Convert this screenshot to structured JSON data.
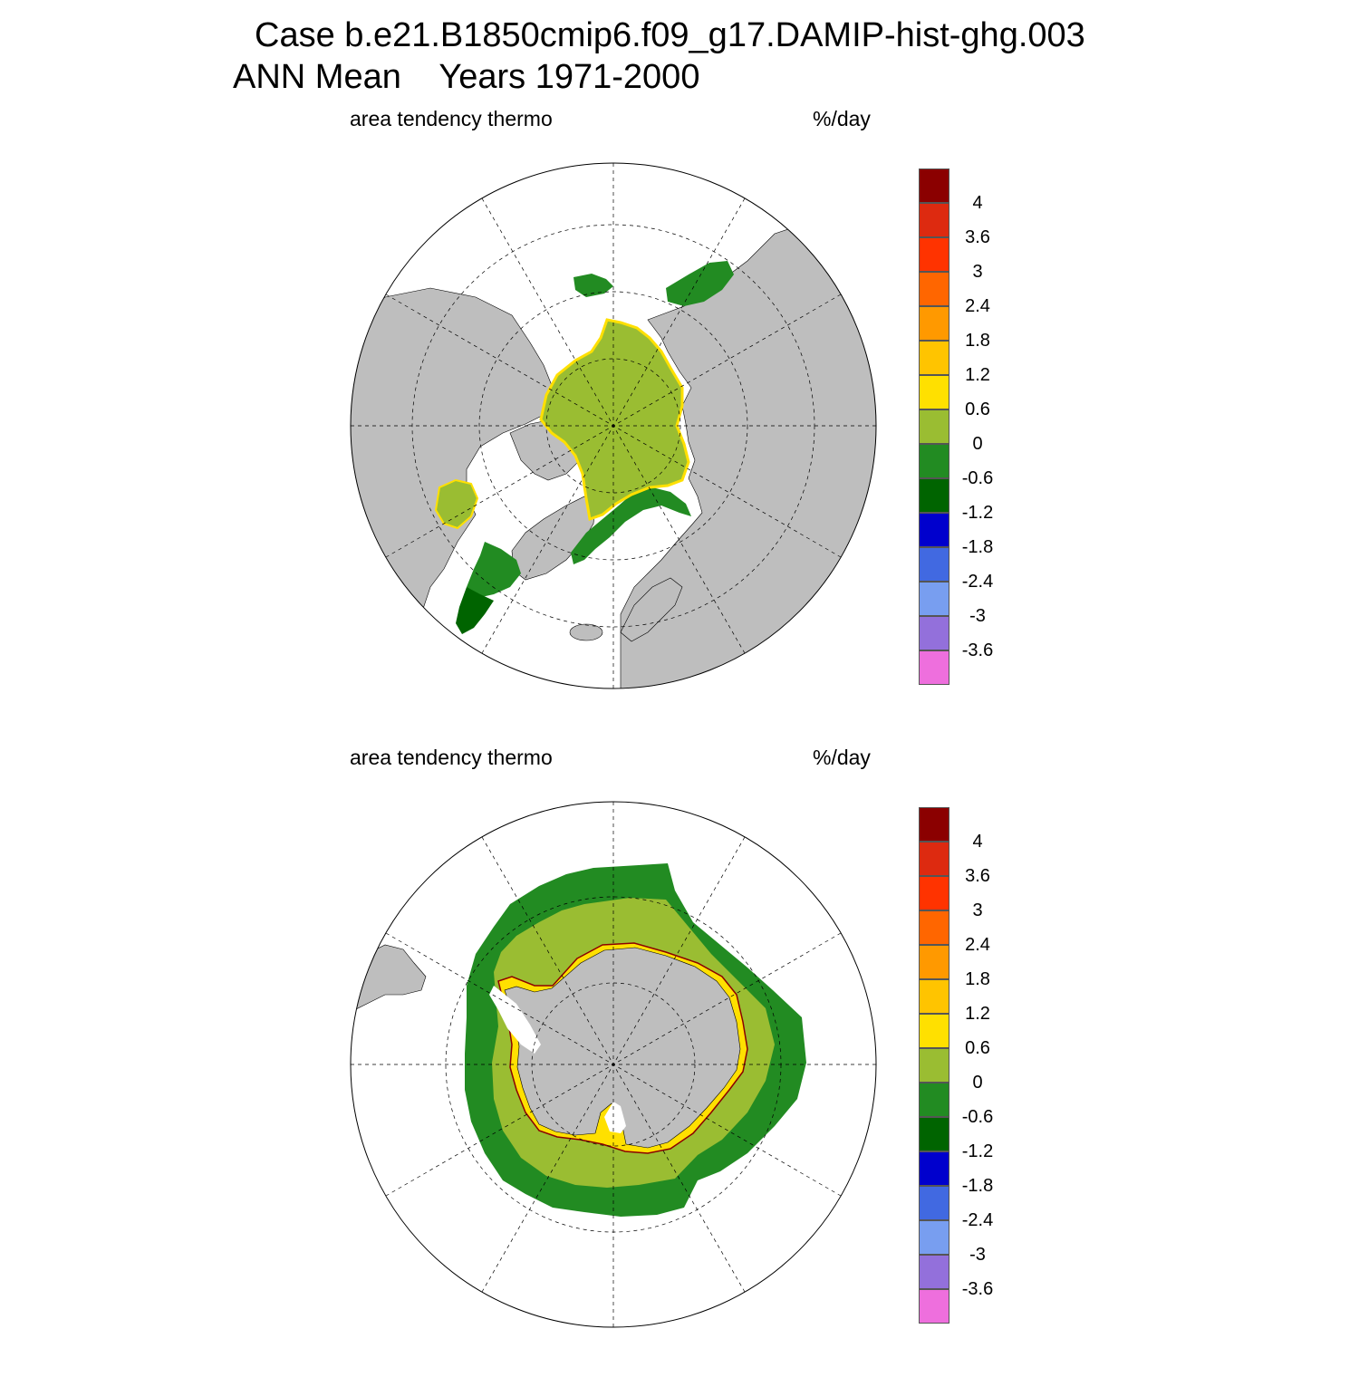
{
  "title": {
    "line1": "Case b.e21.B1850cmip6.f09_g17.DAMIP-hist-ghg.003",
    "line2": "ANN Mean    Years 1971-2000"
  },
  "panels": [
    {
      "id": "north",
      "hemisphere": "northern",
      "left_label": "area tendency thermo",
      "right_label": "%/day"
    },
    {
      "id": "south",
      "hemisphere": "southern",
      "left_label": "area tendency thermo",
      "right_label": "%/day"
    }
  ],
  "colorbar": {
    "tick_labels": [
      "4",
      "3.6",
      "3",
      "2.4",
      "1.8",
      "1.2",
      "0.6",
      "0",
      "-0.6",
      "-1.2",
      "-1.8",
      "-2.4",
      "-3",
      "-3.6"
    ],
    "colors_top_to_bottom": [
      "#8b0000",
      "#dd2a10",
      "#ff3300",
      "#ff6600",
      "#ff9900",
      "#ffc400",
      "#ffe000",
      "#9abd32",
      "#228b22",
      "#006400",
      "#0000cd",
      "#4169e1",
      "#789ef0",
      "#9370db",
      "#ee6fdd"
    ]
  },
  "colors": {
    "land": "#bebebe",
    "ocean": "#ffffff",
    "positive_small": "#9abd32",
    "negative_small": "#228b22",
    "negative_mid": "#006400",
    "edge_yellow": "#ffe000",
    "edge_red": "#8b0000"
  }
}
